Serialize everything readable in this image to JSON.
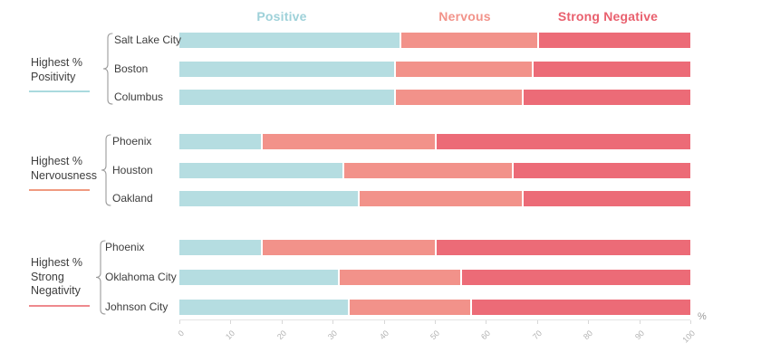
{
  "legend": {
    "items": [
      {
        "label": "Positive",
        "color": "#9ed1d9"
      },
      {
        "label": "Nervous",
        "color": "#f2938a"
      },
      {
        "label": "Strong Negative",
        "color": "#e9606e"
      }
    ]
  },
  "axis": {
    "ticks": [
      "0",
      "10",
      "20",
      "30",
      "40",
      "50",
      "60",
      "70",
      "80",
      "90",
      "100"
    ],
    "unit": "%"
  },
  "chart_data": {
    "type": "bar",
    "orientation": "horizontal-stacked",
    "series_names": [
      "Positive",
      "Nervous",
      "Strong Negative"
    ],
    "series_colors": [
      "#b5dde1",
      "#f2928a",
      "#ec6b77"
    ],
    "xlim": [
      0,
      100
    ],
    "xlabel": "%",
    "grid": false,
    "legend_position": "top",
    "groups": [
      {
        "label_lines": [
          "Highest %",
          "Positivity"
        ],
        "underline_color": "#aadade",
        "rows": [
          {
            "city": "Salt Lake City",
            "values": [
              43,
              27,
              30
            ]
          },
          {
            "city": "Boston",
            "values": [
              42,
              27,
              31
            ]
          },
          {
            "city": "Columbus",
            "values": [
              42,
              25,
              33
            ]
          }
        ]
      },
      {
        "label_lines": [
          "Highest %",
          "Nervousness"
        ],
        "underline_color": "#f09a80",
        "rows": [
          {
            "city": "Phoenix",
            "values": [
              16,
              34,
              50
            ]
          },
          {
            "city": "Houston",
            "values": [
              32,
              33,
              35
            ]
          },
          {
            "city": "Oakland",
            "values": [
              35,
              32,
              33
            ]
          }
        ]
      },
      {
        "label_lines": [
          "Highest %",
          "Strong",
          "Negativity"
        ],
        "underline_color": "#ee898d",
        "rows": [
          {
            "city": "Phoenix",
            "values": [
              16,
              34,
              50
            ]
          },
          {
            "city": "Oklahoma City",
            "values": [
              31,
              24,
              45
            ]
          },
          {
            "city": "Johnson City",
            "values": [
              33,
              24,
              43
            ]
          }
        ]
      }
    ]
  }
}
